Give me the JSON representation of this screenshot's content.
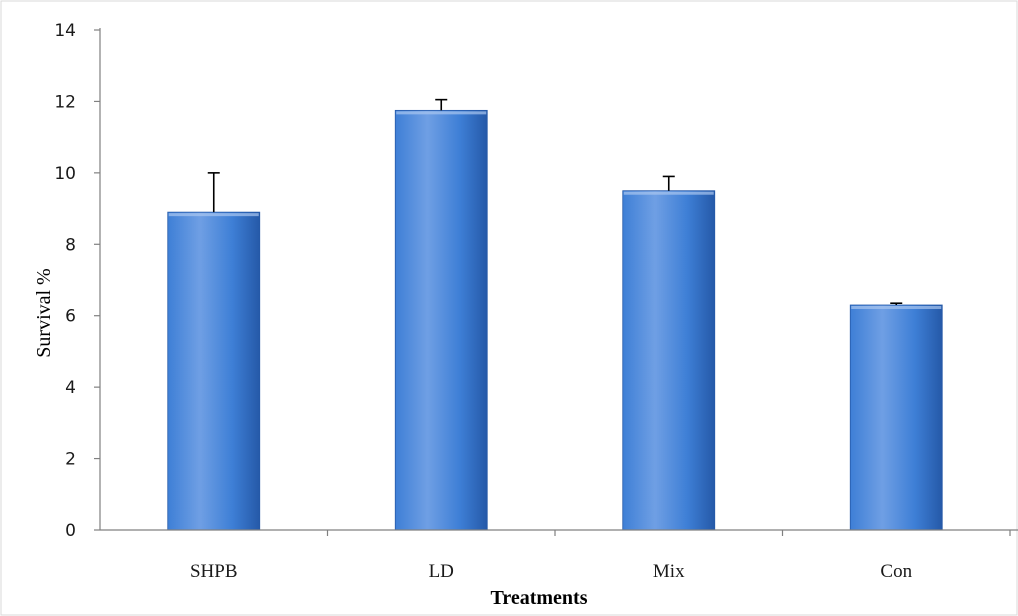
{
  "chart_data": {
    "type": "bar",
    "title": "",
    "xlabel": "Treatments",
    "ylabel": "Survival %",
    "categories": [
      "SHPB",
      "LD",
      "Mix",
      "Con"
    ],
    "values": [
      8.9,
      11.75,
      9.5,
      6.3
    ],
    "error": [
      1.1,
      0.3,
      0.4,
      0.05
    ],
    "ylim": [
      0,
      14
    ],
    "yticks": [
      0,
      2,
      4,
      6,
      8,
      10,
      12,
      14
    ],
    "grid": false,
    "legend": "none",
    "colors": {
      "bar_light": "#6f9fe4",
      "bar_mid": "#3e7fd6",
      "bar_dark": "#2559a8",
      "axis": "#808080",
      "error_bar": "#000000"
    }
  }
}
